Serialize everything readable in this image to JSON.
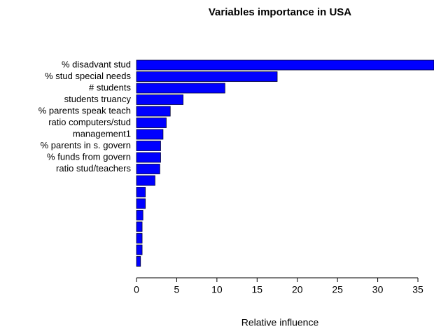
{
  "chart_data": {
    "type": "barh",
    "title": "Variables importance in USA",
    "xlabel": "Relative influence",
    "categories": [
      "% disadvant stud",
      "% stud special needs",
      "# students",
      "students truancy",
      "% parents speak teach",
      "ratio computers/stud",
      "management1",
      "% parents in s. govern",
      "% funds from govern",
      "ratio stud/teachers",
      null,
      null,
      null,
      null,
      null,
      null,
      null,
      null
    ],
    "values": [
      37.0,
      17.5,
      11.0,
      5.8,
      4.2,
      3.7,
      3.3,
      3.0,
      3.0,
      2.9,
      2.3,
      1.1,
      1.1,
      0.8,
      0.7,
      0.7,
      0.7,
      0.5
    ],
    "color": "#0000ff",
    "xlim": [
      0,
      37
    ],
    "xticks": [
      0,
      5,
      10,
      15,
      20,
      25,
      30,
      35
    ]
  }
}
